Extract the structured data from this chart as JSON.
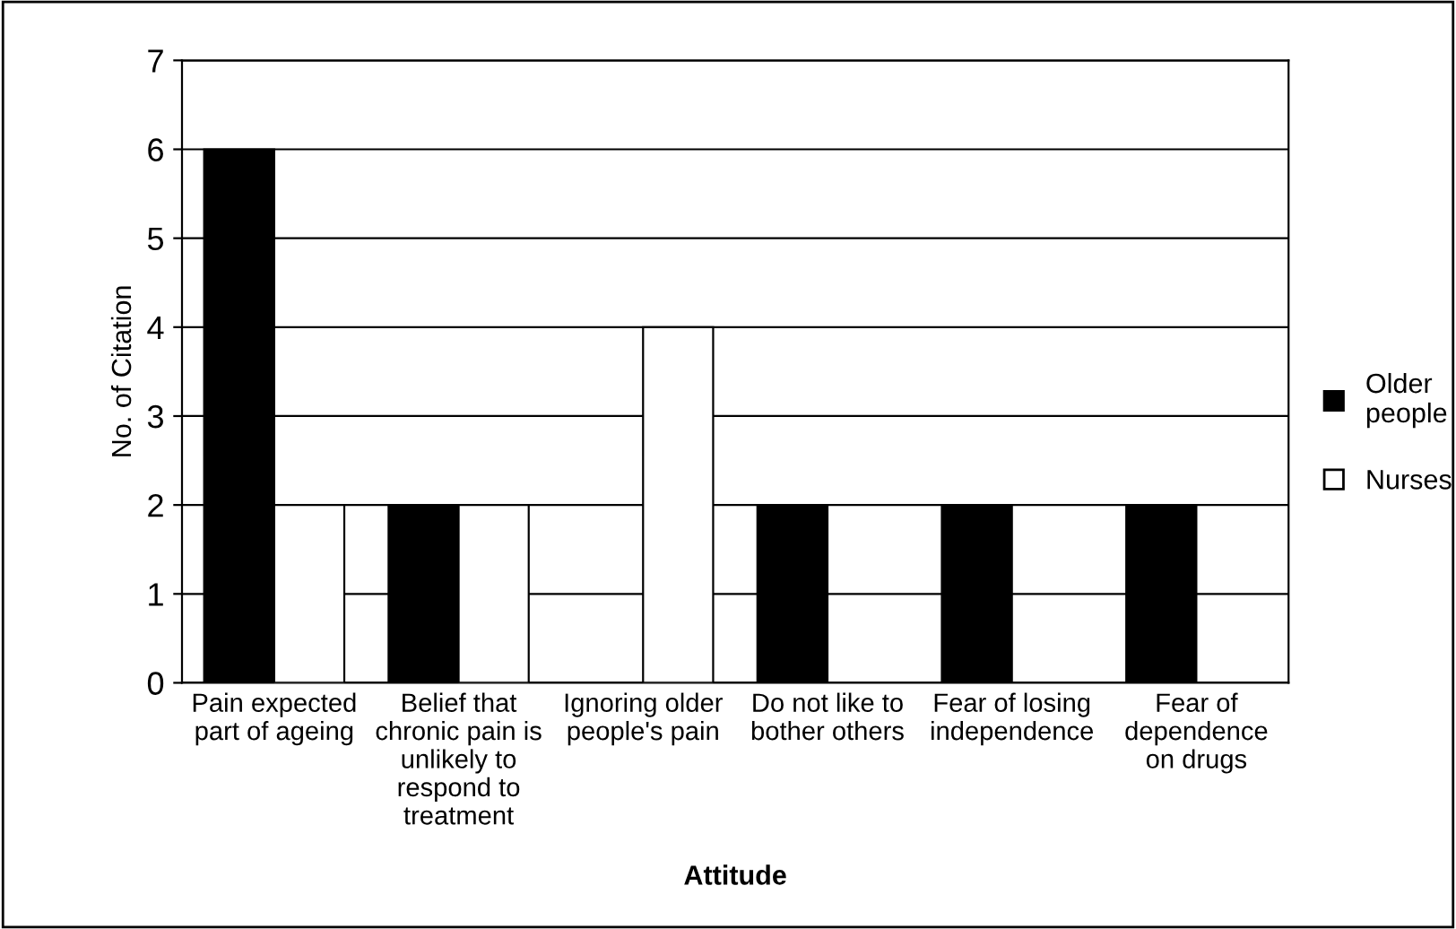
{
  "chart_data": {
    "type": "bar",
    "xlabel": "Attitude",
    "ylabel": "No. of Citation",
    "categories": [
      "Pain expected\npart of ageing",
      "Belief that\nchronic pain is\nunlikely to\nrespond to\ntreatment",
      "Ignoring older\npeople's pain",
      "Do not like to\nbother others",
      "Fear of losing\nindependence",
      "Fear of\ndependence\non drugs"
    ],
    "series": [
      {
        "name": "Older\npeople",
        "color": "#000000",
        "values": [
          6,
          2,
          null,
          2,
          2,
          2
        ]
      },
      {
        "name": "Nurses",
        "color": "#ffffff",
        "values": [
          2,
          2,
          4,
          null,
          null,
          null
        ]
      }
    ],
    "ylim": [
      0,
      7
    ],
    "yticks": [
      0,
      1,
      2,
      3,
      4,
      5,
      6,
      7
    ],
    "grid": "y",
    "legend": "right"
  }
}
